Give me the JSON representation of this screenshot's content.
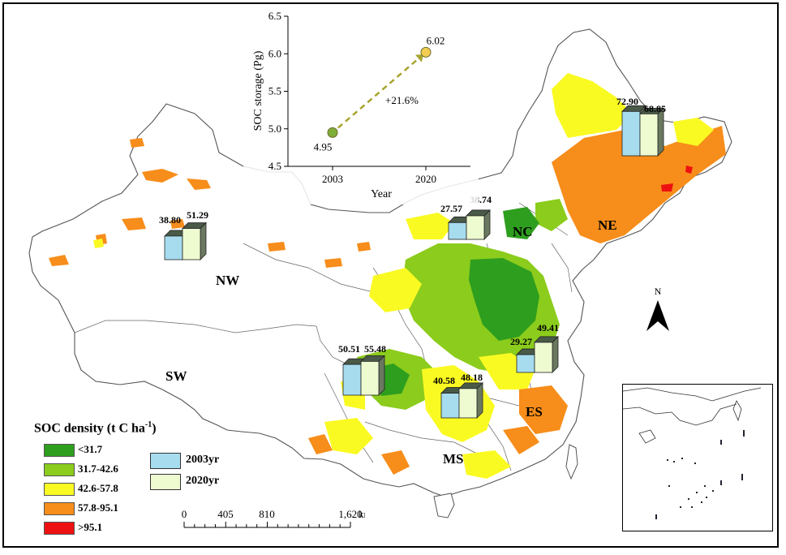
{
  "map": {
    "regions": [
      {
        "code": "NW",
        "label": "NW"
      },
      {
        "code": "SW",
        "label": "SW"
      },
      {
        "code": "NC",
        "label": "NC"
      },
      {
        "code": "NE",
        "label": "NE"
      },
      {
        "code": "MS",
        "label": "MS"
      },
      {
        "code": "ES",
        "label": "ES"
      }
    ],
    "bar_groups": [
      {
        "region": "NW",
        "v2003": 38.8,
        "v2020": 51.29,
        "label2003": "38.80",
        "label2020": "51.29"
      },
      {
        "region": "NC",
        "v2003": 27.57,
        "v2020": 38.74,
        "label2003": "27.57",
        "label2020": "38.74"
      },
      {
        "region": "NE",
        "v2003": 72.9,
        "v2020": 68.85,
        "label2003": "72.90",
        "label2020": "68.85"
      },
      {
        "region": "SW",
        "v2003": 50.51,
        "v2020": 55.48,
        "label2003": "50.51",
        "label2020": "55.48"
      },
      {
        "region": "MS",
        "v2003": 40.58,
        "v2020": 48.18,
        "label2003": "40.58",
        "label2020": "48.18"
      },
      {
        "region": "ES",
        "v2003": 29.27,
        "v2020": 49.41,
        "label2003": "29.27",
        "label2020": "49.41"
      }
    ],
    "bar_colors": {
      "y2003": "#a7dcef",
      "y2020": "#eefbd1"
    },
    "north_label": "N"
  },
  "legend": {
    "title": "SOC density (t C ha",
    "title_sup": "-1",
    "title_end": ")",
    "classes": [
      {
        "label": "<31.7",
        "color": "#2e9e1e"
      },
      {
        "label": "31.7-42.6",
        "color": "#8bcc1c"
      },
      {
        "label": "42.6-57.8",
        "color": "#fafa23"
      },
      {
        "label": "57.8-95.1",
        "color": "#f78d1a"
      },
      {
        "label": ">95.1",
        "color": "#ee1111"
      }
    ],
    "bar_legend": [
      {
        "label": "2003yr",
        "color": "#a7dcef"
      },
      {
        "label": "2020yr",
        "color": "#eefbd1"
      }
    ]
  },
  "scale_bar": {
    "ticks": [
      "0",
      "405",
      "810",
      "1,620"
    ],
    "unit": "km"
  },
  "chart_data": {
    "type": "scatter",
    "title": "",
    "xlabel": "Year",
    "ylabel": "SOC storage (Pg)",
    "x": [
      "2003",
      "2020"
    ],
    "ylim": [
      4.5,
      6.5
    ],
    "yticks": [
      "4.5",
      "5.0",
      "5.5",
      "6.0",
      "6.5"
    ],
    "series": [
      {
        "values": [
          4.95,
          6.02
        ],
        "colors": [
          "#7fae3a",
          "#f2cd52"
        ]
      }
    ],
    "data_labels": [
      "4.95",
      "6.02"
    ],
    "annotation": "+21.6%"
  }
}
